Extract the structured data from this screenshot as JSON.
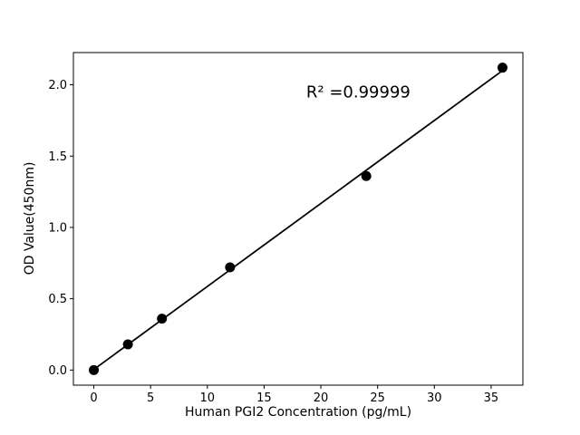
{
  "figure": {
    "background_color": "#ffffff",
    "foreground_color": "#000000"
  },
  "chart_data": {
    "type": "scatter",
    "title": "",
    "xlabel": "Human PGI2 Concentration (pg/mL)",
    "ylabel": "OD Value(450nm)",
    "x": [
      0,
      3,
      6,
      12,
      24,
      36
    ],
    "y": [
      0.0,
      0.18,
      0.36,
      0.72,
      1.36,
      2.12
    ],
    "fit_line": {
      "slope": 0.0582,
      "intercept": 0.004,
      "x_start": 0,
      "x_end": 36
    },
    "annotation": {
      "text": "R² =0.99999",
      "x": 23.3,
      "y": 1.95
    },
    "xlim": [
      -1.8,
      37.8
    ],
    "ylim": [
      -0.106,
      2.226
    ],
    "x_ticks": [
      0,
      5,
      10,
      15,
      20,
      25,
      30,
      35
    ],
    "x_tick_labels": [
      "0",
      "5",
      "10",
      "15",
      "20",
      "25",
      "30",
      "35"
    ],
    "y_ticks": [
      0.0,
      0.5,
      1.0,
      1.5,
      2.0
    ],
    "y_tick_labels": [
      "0.0",
      "0.5",
      "1.0",
      "1.5",
      "2.0"
    ],
    "grid": false,
    "legend": null,
    "marker_color": "#000000",
    "marker_radius": 5.5,
    "line_color": "#000000",
    "line_width": 1.8,
    "spine_color": "#000000"
  }
}
